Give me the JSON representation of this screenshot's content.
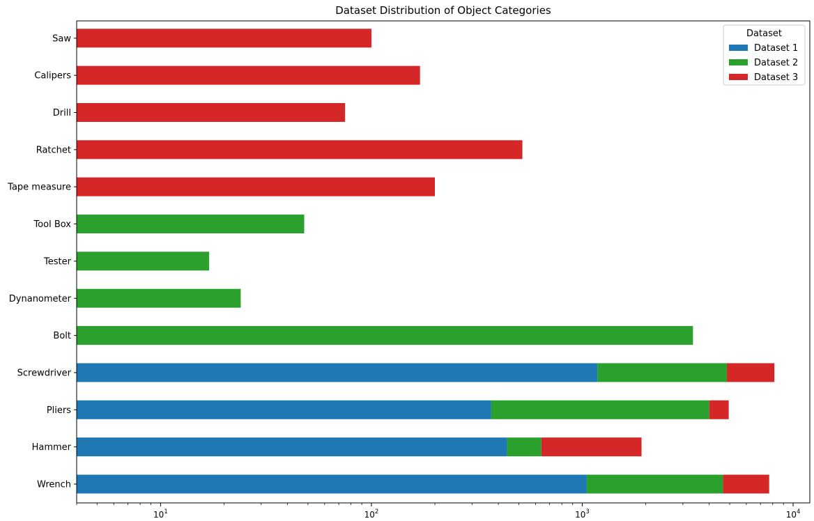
{
  "chart_data": {
    "type": "bar",
    "orientation": "horizontal",
    "stacked": true,
    "title": "Dataset Distribution of Object Categories",
    "xlabel": "",
    "ylabel": "",
    "xscale": "log",
    "xlim": [
      4,
      12000
    ],
    "x_ticks": [
      10,
      100,
      1000,
      10000
    ],
    "x_tick_labels": [
      "10",
      "100",
      "1000",
      "10000"
    ],
    "grid": false,
    "legend": {
      "title": "Dataset",
      "placement": "top-right"
    },
    "categories": [
      "Wrench",
      "Hammer",
      "Pliers",
      "Screwdriver",
      "Bolt",
      "Dynanometer",
      "Tester",
      "Tool Box",
      "Tape measure",
      "Ratchet",
      "Drill",
      "Calipers",
      "Saw"
    ],
    "series": [
      {
        "name": "Dataset 1",
        "color": "#1f77b4",
        "values": [
          1050,
          440,
          370,
          1180,
          0,
          0,
          0,
          0,
          0,
          0,
          0,
          0,
          0
        ]
      },
      {
        "name": "Dataset 2",
        "color": "#2ca02c",
        "values": [
          3600,
          200,
          3630,
          3670,
          3350,
          24,
          17,
          48,
          0,
          0,
          0,
          0,
          0
        ]
      },
      {
        "name": "Dataset 3",
        "color": "#d62728",
        "values": [
          3050,
          1270,
          950,
          3300,
          0,
          0,
          0,
          0,
          200,
          520,
          75,
          170,
          100
        ]
      }
    ]
  }
}
